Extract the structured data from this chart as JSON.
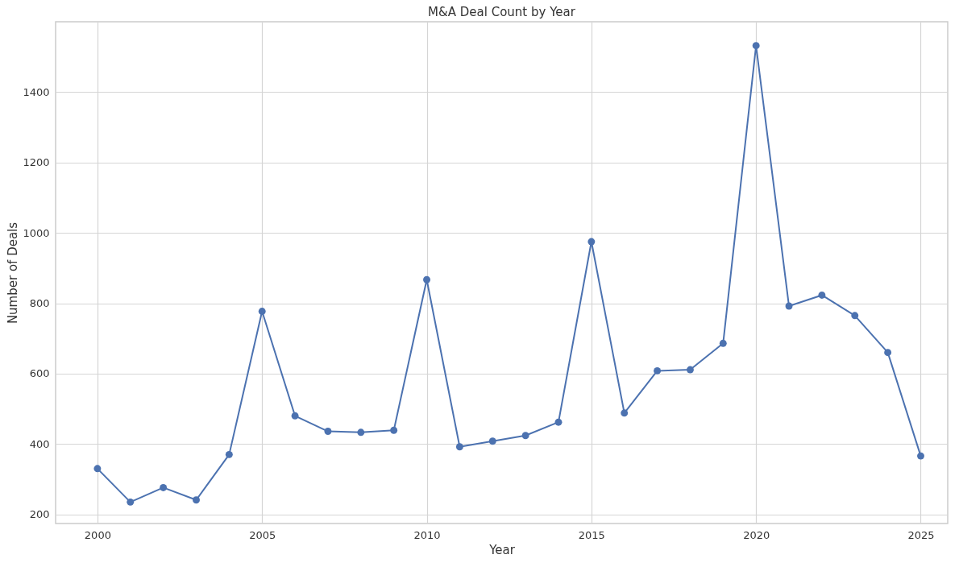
{
  "chart_data": {
    "type": "line",
    "title": "M&A Deal Count by Year",
    "xlabel": "Year",
    "ylabel": "Number of Deals",
    "x": [
      2000,
      2001,
      2002,
      2003,
      2004,
      2005,
      2006,
      2007,
      2008,
      2009,
      2010,
      2011,
      2012,
      2013,
      2014,
      2015,
      2016,
      2017,
      2018,
      2019,
      2020,
      2021,
      2022,
      2023,
      2024,
      2025
    ],
    "series": [
      {
        "color": "#4c72b0",
        "values": [
          330,
          235,
          276,
          241,
          370,
          777,
          480,
          436,
          433,
          439,
          867,
          392,
          408,
          424,
          462,
          975,
          488,
          608,
          611,
          686,
          1532,
          792,
          823,
          765,
          660,
          366
        ]
      }
    ],
    "xlim": [
      1998.73,
      2025.82
    ],
    "xticks": [
      2000,
      2005,
      2010,
      2015,
      2020,
      2025
    ],
    "ylim": [
      174,
      1600
    ],
    "yticks": [
      200,
      400,
      600,
      800,
      1000,
      1200,
      1400
    ],
    "grid": true,
    "marker": "circle",
    "line_style": "solid"
  }
}
